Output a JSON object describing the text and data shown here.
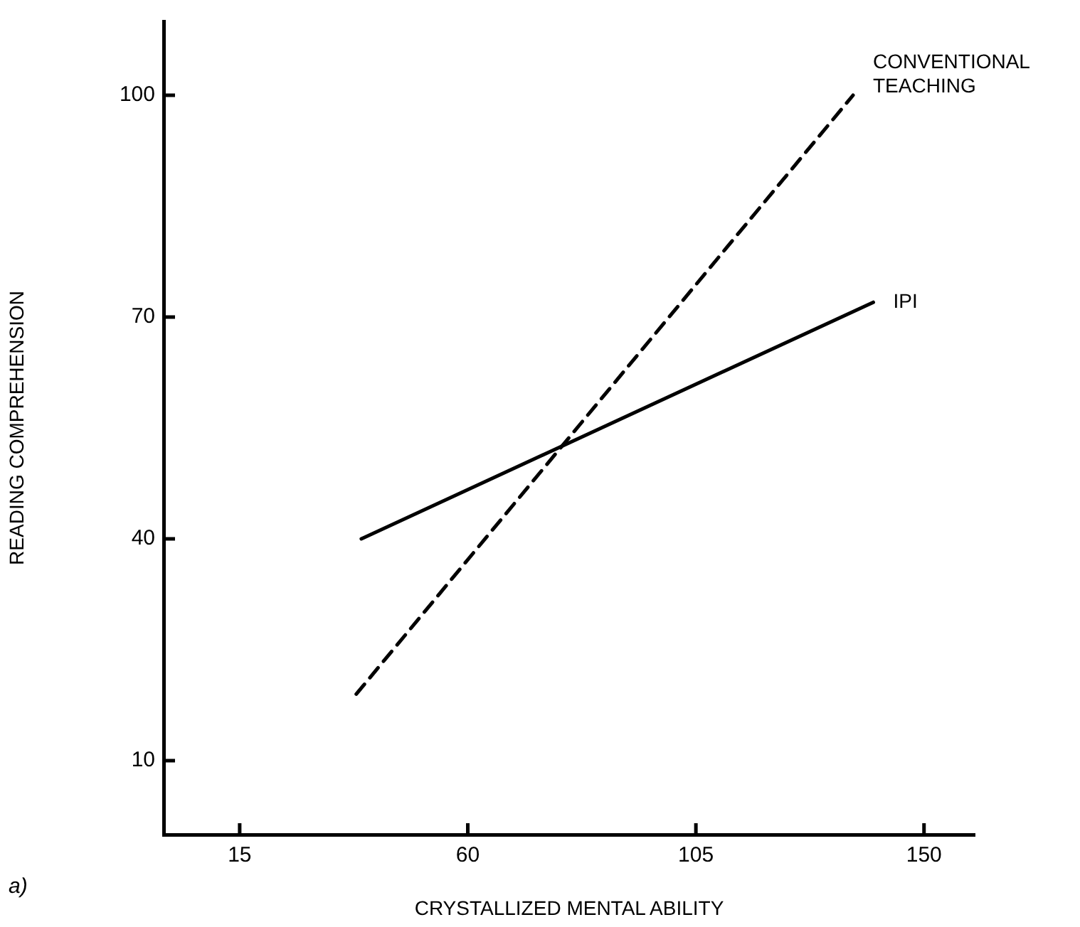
{
  "chart_data": {
    "type": "line",
    "xlabel": "CRYSTALLIZED MENTAL ABILITY",
    "ylabel": "READING COMPREHENSION",
    "annotations": [
      "a)"
    ],
    "xlim": [
      0,
      160
    ],
    "xticks": [
      15,
      60,
      105,
      150
    ],
    "ylim": [
      0,
      110
    ],
    "yticks": [
      10,
      40,
      70,
      100
    ],
    "grid": false,
    "legend": false,
    "marker": "none",
    "series": [
      {
        "name": "CONVENTIONAL TEACHING",
        "color": "#000000",
        "line_style": "dashed",
        "x": [
          38,
          136
        ],
        "values": [
          19,
          100
        ]
      },
      {
        "name": "IPI",
        "color": "#000000",
        "line_style": "solid",
        "x": [
          39,
          140
        ],
        "values": [
          40,
          72
        ]
      }
    ]
  }
}
